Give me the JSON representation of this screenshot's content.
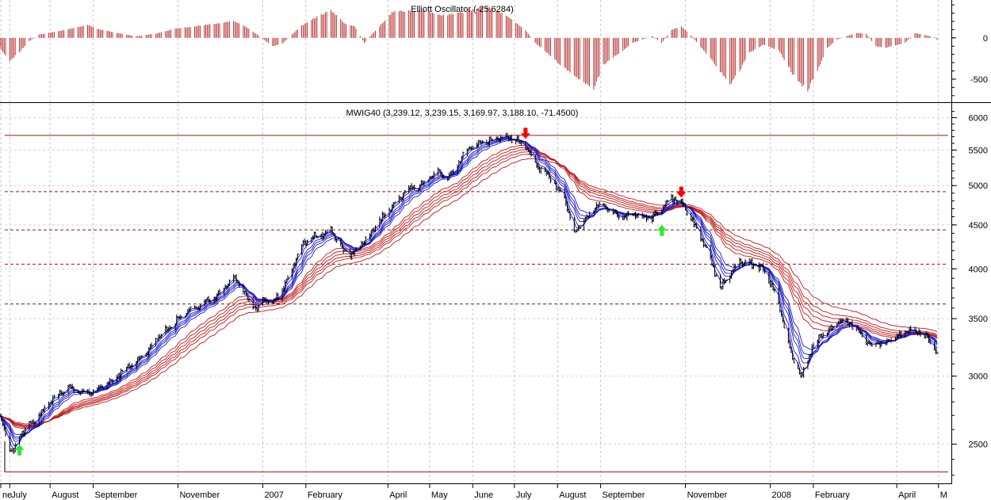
{
  "chart_data": [
    {
      "panel": "oscillator",
      "type": "bar",
      "title": "Elliott Oscillator (-25.6284)",
      "yticks": [
        0,
        -500
      ],
      "ylim": [
        -760,
        430
      ],
      "color": "#b22222",
      "x_start": "2006-06-26",
      "x_end": "2008-04-30",
      "profile": [
        [
          "2006-06-26",
          -120
        ],
        [
          "2006-07-03",
          -280
        ],
        [
          "2006-07-10",
          -170
        ],
        [
          "2006-07-17",
          -40
        ],
        [
          "2006-07-24",
          40
        ],
        [
          "2006-08-07",
          80
        ],
        [
          "2006-08-21",
          130
        ],
        [
          "2006-08-28",
          160
        ],
        [
          "2006-09-04",
          110
        ],
        [
          "2006-09-18",
          60
        ],
        [
          "2006-10-02",
          20
        ],
        [
          "2006-10-16",
          50
        ],
        [
          "2006-10-30",
          110
        ],
        [
          "2006-11-13",
          140
        ],
        [
          "2006-11-27",
          170
        ],
        [
          "2006-12-11",
          200
        ],
        [
          "2006-12-18",
          150
        ],
        [
          "2006-12-28",
          40
        ],
        [
          "2007-01-08",
          -100
        ],
        [
          "2007-01-15",
          -70
        ],
        [
          "2007-01-29",
          150
        ],
        [
          "2007-02-12",
          280
        ],
        [
          "2007-02-19",
          340
        ],
        [
          "2007-03-01",
          170
        ],
        [
          "2007-03-08",
          140
        ],
        [
          "2007-03-15",
          -60
        ],
        [
          "2007-03-22",
          70
        ],
        [
          "2007-04-05",
          320
        ],
        [
          "2007-04-26",
          330
        ],
        [
          "2007-05-10",
          270
        ],
        [
          "2007-05-28",
          320
        ],
        [
          "2007-06-11",
          380
        ],
        [
          "2007-06-25",
          280
        ],
        [
          "2007-07-09",
          90
        ],
        [
          "2007-07-16",
          -60
        ],
        [
          "2007-07-30",
          -260
        ],
        [
          "2007-08-13",
          -470
        ],
        [
          "2007-08-27",
          -620
        ],
        [
          "2007-09-03",
          -320
        ],
        [
          "2007-09-17",
          -150
        ],
        [
          "2007-09-24",
          -60
        ],
        [
          "2007-10-08",
          20
        ],
        [
          "2007-10-15",
          -60
        ],
        [
          "2007-10-22",
          100
        ],
        [
          "2007-10-29",
          140
        ],
        [
          "2007-11-05",
          30
        ],
        [
          "2007-11-19",
          -250
        ],
        [
          "2007-12-03",
          -560
        ],
        [
          "2007-12-10",
          -400
        ],
        [
          "2007-12-17",
          -180
        ],
        [
          "2007-12-27",
          -80
        ],
        [
          "2008-01-07",
          -150
        ],
        [
          "2008-01-21",
          -540
        ],
        [
          "2008-01-28",
          -630
        ],
        [
          "2008-02-04",
          -400
        ],
        [
          "2008-02-11",
          -120
        ],
        [
          "2008-02-18",
          -20
        ],
        [
          "2008-03-03",
          60
        ],
        [
          "2008-03-10",
          50
        ],
        [
          "2008-03-17",
          -100
        ],
        [
          "2008-03-24",
          -120
        ],
        [
          "2008-04-07",
          -60
        ],
        [
          "2008-04-14",
          60
        ],
        [
          "2008-04-28",
          10
        ],
        [
          "2008-04-30",
          -25.6284
        ]
      ]
    },
    {
      "panel": "price",
      "type": "line",
      "title": "MWIG40 (3,239.12, 3,239.15, 3,169.97, 3,188.10, -71.4500)",
      "ylog": true,
      "ylim": [
        2260,
        6200
      ],
      "yticks": [
        2500,
        3000,
        3500,
        4000,
        4500,
        5000,
        5500,
        6000
      ],
      "x_start": "2006-06-26",
      "x_end": "2008-04-30",
      "x_labels": [
        "ne",
        "July",
        "August",
        "September",
        "November",
        "2007",
        "February",
        "April",
        "May",
        "June",
        "July",
        "August",
        "September",
        "November",
        "2008",
        "February",
        "April",
        "M"
      ],
      "x_label_dates": [
        "2006-06-26",
        "2006-07-03",
        "2006-08-01",
        "2006-09-01",
        "2006-11-01",
        "2007-01-01",
        "2007-02-01",
        "2007-04-01",
        "2007-05-01",
        "2007-06-01",
        "2007-07-01",
        "2007-08-01",
        "2007-09-01",
        "2007-11-01",
        "2008-01-01",
        "2008-02-01",
        "2008-04-01",
        "2008-05-01"
      ],
      "hlines": [
        {
          "value": 5720,
          "style": "solid"
        },
        {
          "value": 4920,
          "style": "dashed"
        },
        {
          "value": 4440,
          "style": "dashed"
        },
        {
          "value": 4050,
          "style": "dashed"
        },
        {
          "value": 3640,
          "style": "dashed"
        },
        {
          "value": 2320,
          "style": "solid"
        }
      ],
      "price": [
        [
          "2006-06-26",
          2680
        ],
        [
          "2006-06-29",
          2600
        ],
        [
          "2006-07-03",
          2470
        ],
        [
          "2006-07-06",
          2450
        ],
        [
          "2006-07-10",
          2560
        ],
        [
          "2006-07-17",
          2640
        ],
        [
          "2006-07-24",
          2700
        ],
        [
          "2006-07-31",
          2780
        ],
        [
          "2006-08-07",
          2850
        ],
        [
          "2006-08-14",
          2920
        ],
        [
          "2006-08-21",
          2880
        ],
        [
          "2006-08-28",
          2870
        ],
        [
          "2006-09-04",
          2890
        ],
        [
          "2006-09-11",
          2940
        ],
        [
          "2006-09-18",
          3000
        ],
        [
          "2006-09-25",
          3060
        ],
        [
          "2006-10-02",
          3120
        ],
        [
          "2006-10-09",
          3200
        ],
        [
          "2006-10-16",
          3300
        ],
        [
          "2006-10-23",
          3380
        ],
        [
          "2006-10-30",
          3470
        ],
        [
          "2006-11-06",
          3550
        ],
        [
          "2006-11-13",
          3600
        ],
        [
          "2006-11-20",
          3650
        ],
        [
          "2006-11-27",
          3710
        ],
        [
          "2006-12-04",
          3800
        ],
        [
          "2006-12-11",
          3900
        ],
        [
          "2006-12-18",
          3800
        ],
        [
          "2006-12-22",
          3650
        ],
        [
          "2006-12-28",
          3600
        ],
        [
          "2007-01-02",
          3680
        ],
        [
          "2007-01-08",
          3650
        ],
        [
          "2007-01-15",
          3780
        ],
        [
          "2007-01-22",
          4000
        ],
        [
          "2007-01-29",
          4250
        ],
        [
          "2007-02-05",
          4350
        ],
        [
          "2007-02-12",
          4380
        ],
        [
          "2007-02-19",
          4420
        ],
        [
          "2007-02-26",
          4250
        ],
        [
          "2007-03-05",
          4150
        ],
        [
          "2007-03-12",
          4250
        ],
        [
          "2007-03-19",
          4380
        ],
        [
          "2007-03-26",
          4550
        ],
        [
          "2007-04-02",
          4700
        ],
        [
          "2007-04-09",
          4850
        ],
        [
          "2007-04-16",
          4950
        ],
        [
          "2007-04-23",
          5000
        ],
        [
          "2007-04-30",
          5100
        ],
        [
          "2007-05-07",
          5200
        ],
        [
          "2007-05-14",
          5100
        ],
        [
          "2007-05-21",
          5300
        ],
        [
          "2007-05-28",
          5500
        ],
        [
          "2007-06-04",
          5600
        ],
        [
          "2007-06-11",
          5620
        ],
        [
          "2007-06-18",
          5680
        ],
        [
          "2007-06-25",
          5700
        ],
        [
          "2007-07-02",
          5650
        ],
        [
          "2007-07-09",
          5550
        ],
        [
          "2007-07-16",
          5300
        ],
        [
          "2007-07-23",
          5200
        ],
        [
          "2007-07-30",
          5000
        ],
        [
          "2007-08-06",
          4850
        ],
        [
          "2007-08-13",
          4400
        ],
        [
          "2007-08-20",
          4550
        ],
        [
          "2007-08-27",
          4700
        ],
        [
          "2007-09-03",
          4750
        ],
        [
          "2007-09-10",
          4650
        ],
        [
          "2007-09-17",
          4580
        ],
        [
          "2007-09-24",
          4650
        ],
        [
          "2007-10-01",
          4600
        ],
        [
          "2007-10-08",
          4580
        ],
        [
          "2007-10-15",
          4700
        ],
        [
          "2007-10-22",
          4850
        ],
        [
          "2007-10-29",
          4780
        ],
        [
          "2007-11-05",
          4600
        ],
        [
          "2007-11-12",
          4350
        ],
        [
          "2007-11-19",
          4100
        ],
        [
          "2007-11-26",
          3800
        ],
        [
          "2007-12-03",
          3950
        ],
        [
          "2007-12-10",
          4100
        ],
        [
          "2007-12-17",
          4050
        ],
        [
          "2007-12-27",
          4000
        ],
        [
          "2008-01-03",
          3800
        ],
        [
          "2008-01-10",
          3500
        ],
        [
          "2008-01-17",
          3150
        ],
        [
          "2008-01-24",
          3000
        ],
        [
          "2008-01-31",
          3250
        ],
        [
          "2008-02-07",
          3350
        ],
        [
          "2008-02-14",
          3400
        ],
        [
          "2008-02-21",
          3500
        ],
        [
          "2008-02-28",
          3450
        ],
        [
          "2008-03-06",
          3350
        ],
        [
          "2008-03-13",
          3250
        ],
        [
          "2008-03-20",
          3280
        ],
        [
          "2008-03-27",
          3300
        ],
        [
          "2008-04-03",
          3350
        ],
        [
          "2008-04-10",
          3400
        ],
        [
          "2008-04-17",
          3380
        ],
        [
          "2008-04-24",
          3300
        ],
        [
          "2008-04-30",
          3188.1
        ]
      ],
      "arrows": [
        {
          "date": "2006-07-10",
          "price": 2520,
          "direction": "up",
          "color": "#2ee82e"
        },
        {
          "date": "2007-07-09",
          "price": 5620,
          "direction": "down",
          "color": "#ff0000"
        },
        {
          "date": "2007-10-15",
          "price": 4540,
          "direction": "up",
          "color": "#2ee82e"
        },
        {
          "date": "2007-10-29",
          "price": 4800,
          "direction": "down",
          "color": "#ff0000"
        }
      ],
      "short_ma_periods": [
        3,
        5,
        8,
        10,
        12,
        15
      ],
      "long_ma_periods": [
        30,
        35,
        40,
        45,
        50,
        60
      ],
      "short_ma_color": "#1a1acc",
      "long_ma_color": "#c01818"
    }
  ]
}
